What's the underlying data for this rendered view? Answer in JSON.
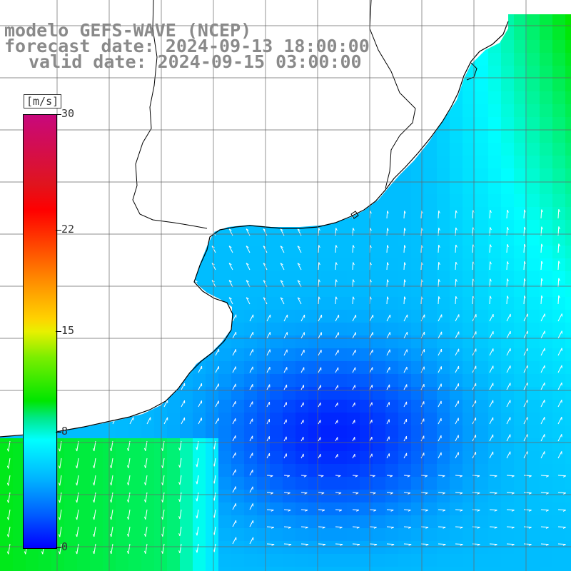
{
  "title": {
    "line1": "modelo GEFS-WAVE (NCEP)",
    "line2": "forecast date: 2024-09-13 18:00:00",
    "line3": "valid date: 2024-09-15 03:00:00"
  },
  "colorbar": {
    "unit": "[m/s]",
    "min": 0,
    "max": 30,
    "tick_labels": [
      "30",
      "22",
      "15",
      "8",
      "0"
    ],
    "tick_values": [
      30,
      22,
      15,
      8,
      0
    ],
    "colors": [
      "#0000ff",
      "#00ffff",
      "#00e600",
      "#ffff00",
      "#ff0000",
      "#c8087c"
    ]
  },
  "map": {
    "type": "wind speed field with direction arrows",
    "land_color": "#ffffff",
    "grid": true,
    "coastline_color": "#000000"
  }
}
